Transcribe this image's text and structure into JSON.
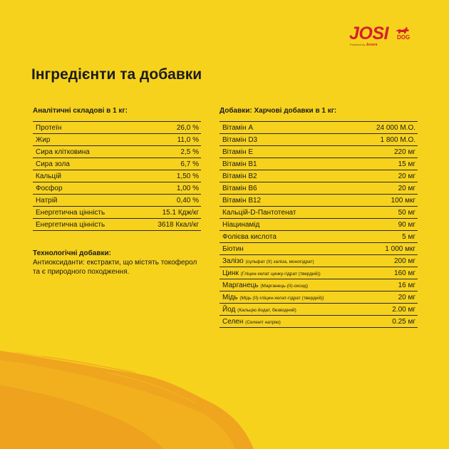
{
  "brand": {
    "logo_main": "JOSI",
    "logo_dog": "DOG",
    "powered_by": "Powered by",
    "powered_brand": "Josera",
    "accent": "#d5202c"
  },
  "page": {
    "title": "Інгредієнти та добавки",
    "background": "#f7d21d",
    "brush_color": "#efa51e"
  },
  "analytical": {
    "heading": "Аналітичні складові в 1 кг:",
    "rows": [
      {
        "name": "Протеїн",
        "value": "26,0 %"
      },
      {
        "name": "Жир",
        "value": "11,0 %"
      },
      {
        "name": "Сира клітковина",
        "value": "2,5 %"
      },
      {
        "name": "Сира зола",
        "value": "6,7 %"
      },
      {
        "name": "Кальцій",
        "value": "1,50 %"
      },
      {
        "name": "Фосфор",
        "value": "1,00 %"
      },
      {
        "name": "Натрій",
        "value": "0,40 %"
      },
      {
        "name": "Енергетична цінність",
        "value": "15.1 Кдж/кг"
      },
      {
        "name": "Енергетична цінність",
        "value": "3618 Ккал/кг"
      }
    ]
  },
  "technological": {
    "heading": "Технологічні добавки:",
    "text": "Антиоксиданти: екстракти, що містять токоферол та є природного походження."
  },
  "additives": {
    "heading": "Добавки: Харчові добавки в 1 кг:",
    "rows": [
      {
        "name": "Вітамін А",
        "note": "",
        "value": "24 000 М.О."
      },
      {
        "name": "Вітамін D3",
        "note": "",
        "value": "1 800 М.О."
      },
      {
        "name": "Вітамін Е",
        "note": "",
        "value": "220 мг"
      },
      {
        "name": "Вітамін В1",
        "note": "",
        "value": "15 мг"
      },
      {
        "name": "Вітамін В2",
        "note": "",
        "value": "20 мг"
      },
      {
        "name": "Вітамін В6",
        "note": "",
        "value": "20 мг"
      },
      {
        "name": "Вітамін В12",
        "note": "",
        "value": "100 мкг"
      },
      {
        "name": "Кальцій-D-Пантотенат",
        "note": "",
        "value": "50 мг"
      },
      {
        "name": "Ніацинамід",
        "note": "",
        "value": "90 мг"
      },
      {
        "name": "Фолієва кислота",
        "note": "",
        "value": "5 мг"
      },
      {
        "name": "Біотин",
        "note": "",
        "value": "1 000 мкг"
      },
      {
        "name": "Залізо",
        "note": "(сульфат (II) заліза, моногідрат)",
        "value": "200 мг"
      },
      {
        "name": "Цинк",
        "note": "(Гліцин-хелат цинку-гідрат (твердий))",
        "value": "160 мг"
      },
      {
        "name": "Марганець",
        "note": "(Марганець-(II)-оксид)",
        "value": "16 мг"
      },
      {
        "name": "Мідь",
        "note": "(Мідь (II)-гліцин-хелат-гідрат (твердий))",
        "value": "20 мг"
      },
      {
        "name": "Йод",
        "note": "(Кальцію йодат, безводний)",
        "value": "2.00 мг"
      },
      {
        "name": "Селен",
        "note": "(Селеніт натрію)",
        "value": "0.25 мг"
      }
    ]
  }
}
